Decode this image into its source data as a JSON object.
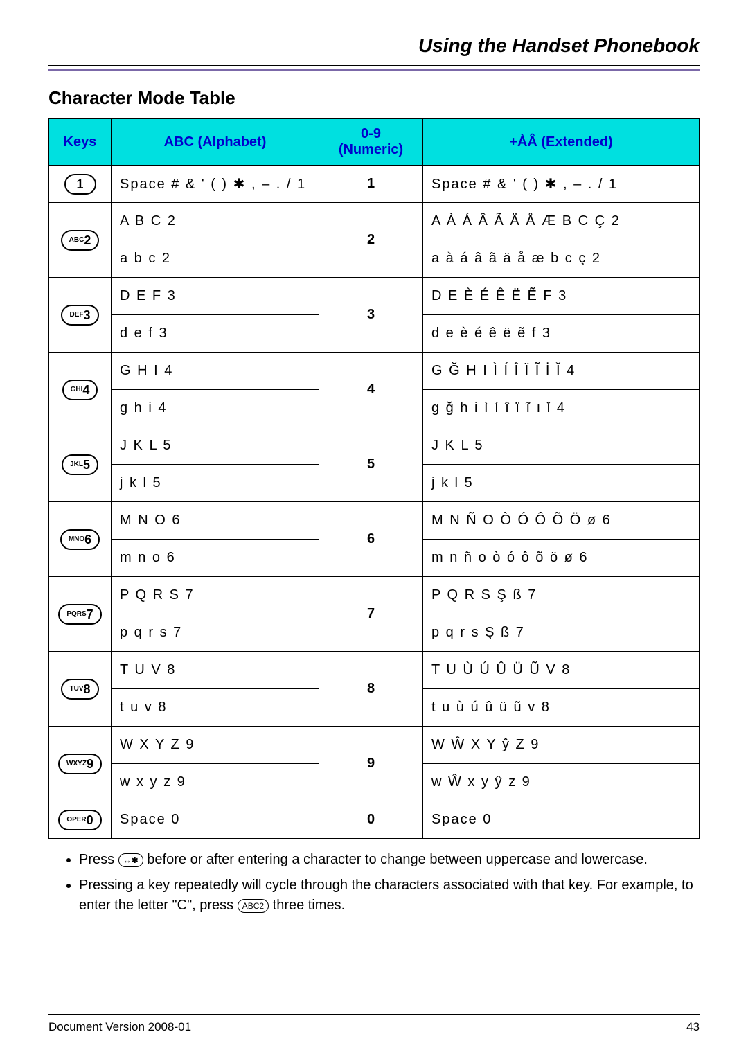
{
  "header": {
    "title": "Using the Handset Phonebook"
  },
  "section": {
    "title": "Character Mode Table"
  },
  "table": {
    "columns": {
      "keys": "Keys",
      "abc": "ABC (Alphabet)",
      "num": "0-9 (Numeric)",
      "ext": "+ÀÂ (Extended)"
    },
    "rows": [
      {
        "key_small": "",
        "key_large": "1",
        "abc_upper": "Space # & ' ( ) ✱ , – . / 1",
        "abc_lower": "",
        "num": "1",
        "ext_upper": "Space # & ' ( ) ✱ , – . / 1",
        "ext_lower": ""
      },
      {
        "key_small": "ABC",
        "key_large": "2",
        "abc_upper": "A B C 2",
        "abc_lower": "a b c 2",
        "num": "2",
        "ext_upper": "A À Á Â Ã Ä Å Æ B C Ç 2",
        "ext_lower": "a à á â ã ä å æ b c ç 2"
      },
      {
        "key_small": "DEF",
        "key_large": "3",
        "abc_upper": "D E F 3",
        "abc_lower": "d e f 3",
        "num": "3",
        "ext_upper": "D E È É Ê Ë Ẽ F 3",
        "ext_lower": "d e è é ê ë ẽ f 3"
      },
      {
        "key_small": "GHI",
        "key_large": "4",
        "abc_upper": "G H I 4",
        "abc_lower": "g h i 4",
        "num": "4",
        "ext_upper": "G Ğ H I Ì Í Î Ï Ĩ İ Ǐ 4",
        "ext_lower": "g ğ h i ì í î ï ĩ ı ǐ 4"
      },
      {
        "key_small": "JKL",
        "key_large": "5",
        "abc_upper": "J K L 5",
        "abc_lower": "j k l 5",
        "num": "5",
        "ext_upper": "J K L 5",
        "ext_lower": "j k l 5"
      },
      {
        "key_small": "MNO",
        "key_large": "6",
        "abc_upper": "M N O 6",
        "abc_lower": "m n o 6",
        "num": "6",
        "ext_upper": "M N Ñ O Ò Ó Ô Õ Ö ø 6",
        "ext_lower": "m n ñ o ò ó ô õ ö ø 6"
      },
      {
        "key_small": "PQRS",
        "key_large": "7",
        "abc_upper": "P Q R S 7",
        "abc_lower": "p q r s 7",
        "num": "7",
        "ext_upper": "P Q R S Ş ß 7",
        "ext_lower": "p q r s Ş ß 7"
      },
      {
        "key_small": "TUV",
        "key_large": "8",
        "abc_upper": "T U V 8",
        "abc_lower": "t u v 8",
        "num": "8",
        "ext_upper": "T U Ù Ú Û Ü Ũ V 8",
        "ext_lower": "t u ù ú û ü ũ v 8"
      },
      {
        "key_small": "WXYZ",
        "key_large": "9",
        "abc_upper": "W X Y Z 9",
        "abc_lower": "w x y z 9",
        "num": "9",
        "ext_upper": "W Ŵ X Y ŷ Z 9",
        "ext_lower": "w Ŵ x y ŷ z 9"
      },
      {
        "key_small": "OPER",
        "key_large": "0",
        "abc_upper": "Space  0",
        "abc_lower": "",
        "num": "0",
        "ext_upper": "Space  0",
        "ext_lower": ""
      }
    ]
  },
  "notes": {
    "n1a": "Press ",
    "n1_key": "↔✱",
    "n1b": " before or after entering a character to change between uppercase and lowercase.",
    "n2a": "Pressing a key repeatedly will cycle through the characters associated with that key. For example, to enter the letter \"C\", press ",
    "n2_key": "ABC2",
    "n2b": " three times."
  },
  "footer": {
    "doc": "Document Version 2008-01",
    "page": "43"
  }
}
